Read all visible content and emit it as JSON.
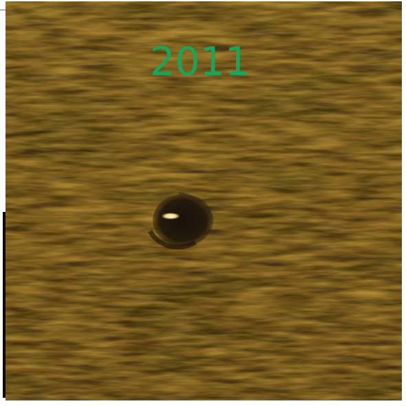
{
  "image": {
    "label": "2011",
    "label_color": "#19a65a",
    "palette": {
      "base": "#8b6a1f",
      "light": "#d3a53f",
      "dark": "#2f220d",
      "highlight": "#f3e0b4"
    }
  }
}
